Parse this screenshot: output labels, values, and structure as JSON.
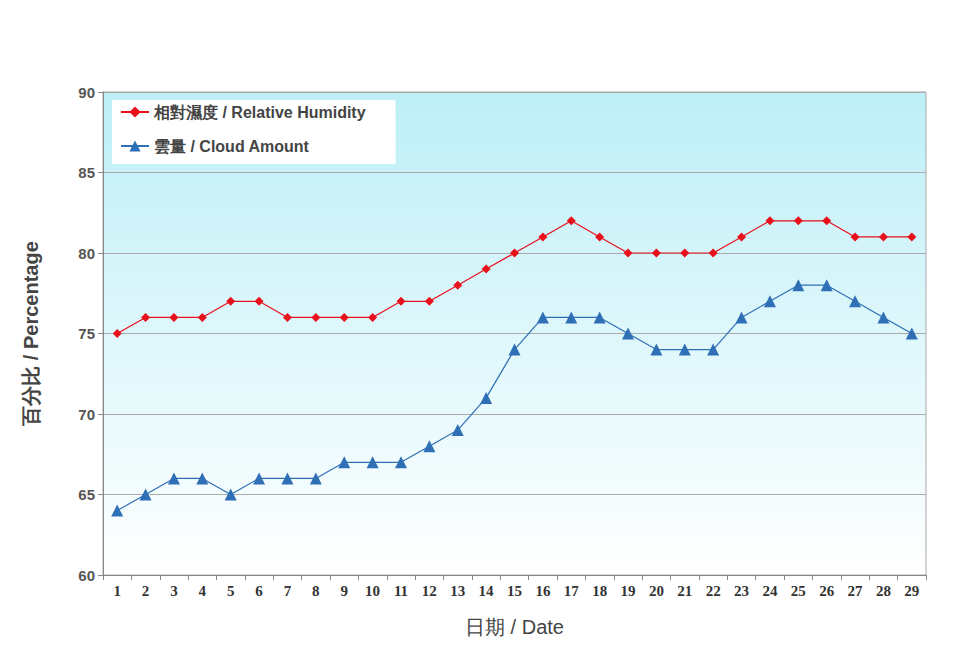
{
  "chart_data": {
    "type": "line",
    "x_label": "日期 / Date",
    "y_label": "百分比 / Percentage",
    "categories": [
      "1",
      "2",
      "3",
      "4",
      "5",
      "6",
      "7",
      "8",
      "9",
      "10",
      "11",
      "12",
      "13",
      "14",
      "15",
      "16",
      "17",
      "18",
      "19",
      "20",
      "21",
      "22",
      "23",
      "24",
      "25",
      "26",
      "27",
      "28",
      "29"
    ],
    "series": [
      {
        "name": "相對濕度 / Relative Humidity",
        "color": "#e8101a",
        "marker": "diamond",
        "values": [
          75,
          76,
          76,
          76,
          77,
          77,
          76,
          76,
          76,
          76,
          77,
          77,
          78,
          79,
          80,
          81,
          82,
          81,
          80,
          80,
          80,
          80,
          81,
          82,
          82,
          82,
          81,
          81,
          81
        ]
      },
      {
        "name": "雲量 / Cloud Amount",
        "color": "#2e6fb5",
        "marker": "triangle",
        "values": [
          64,
          65,
          66,
          66,
          65,
          66,
          66,
          66,
          67,
          67,
          67,
          68,
          69,
          71,
          74,
          76,
          76,
          76,
          75,
          74,
          74,
          74,
          76,
          77,
          78,
          78,
          77,
          76,
          75
        ]
      }
    ],
    "ylim": [
      60,
      90
    ],
    "yticks": [
      60,
      65,
      70,
      75,
      80,
      85,
      90
    ],
    "grid": true,
    "legend": "upper left"
  }
}
